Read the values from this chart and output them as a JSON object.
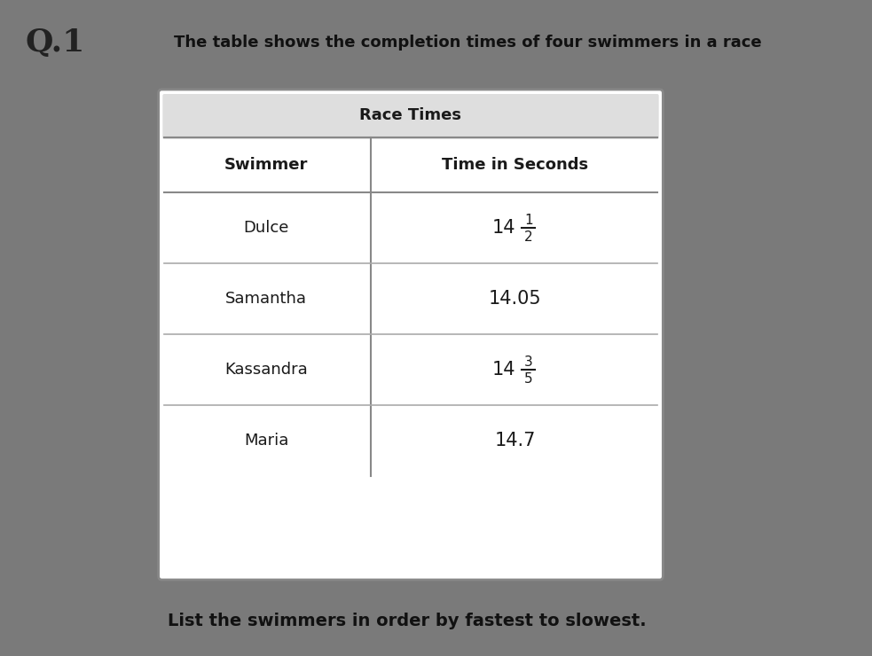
{
  "q_label": "Q.1",
  "title_text": "The table shows the completion times of four swimmers in a race",
  "table_title": "Race Times",
  "col1_header": "Swimmer",
  "col2_header": "Time in Seconds",
  "rows": [
    {
      "swimmer": "Dulce",
      "frac_num": "1",
      "frac_den": "2",
      "is_fraction": true,
      "plain": ""
    },
    {
      "swimmer": "Samantha",
      "frac_num": "",
      "frac_den": "",
      "is_fraction": false,
      "plain": "14.05"
    },
    {
      "swimmer": "Kassandra",
      "frac_num": "3",
      "frac_den": "5",
      "is_fraction": true,
      "plain": ""
    },
    {
      "swimmer": "Maria",
      "frac_num": "",
      "frac_den": "",
      "is_fraction": false,
      "plain": "14.7"
    }
  ],
  "footer_text": "List the swimmers in order by fastest to slowest.",
  "bg_color": "#7a7a7a",
  "table_bg": "#ffffff",
  "text_color": "#1a1a1a",
  "footer_color": "#111111",
  "q_color": "#222222",
  "title_color": "#111111"
}
